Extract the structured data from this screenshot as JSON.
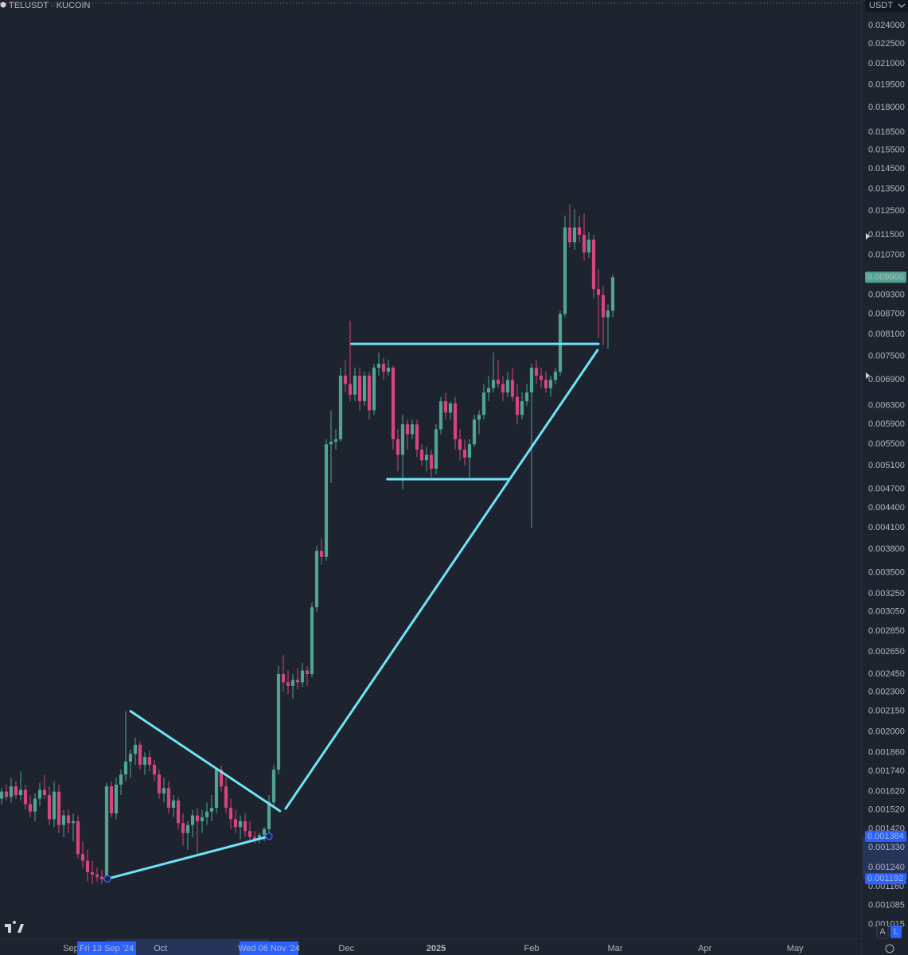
{
  "chart_data": {
    "type": "candlestick",
    "title": "TELUSDT · KUCOIN",
    "currency": "USDT",
    "log_scale": true,
    "grid": false,
    "up_color": "#4fa58f",
    "down_color": "#d6457c",
    "drawing_color": "#6fe3f5",
    "candles": [
      [
        0.00158,
        0.00164,
        0.00155,
        0.00162
      ],
      [
        0.00162,
        0.00166,
        0.00157,
        0.00159
      ],
      [
        0.00159,
        0.0017,
        0.00156,
        0.00165
      ],
      [
        0.00165,
        0.00168,
        0.00158,
        0.0016
      ],
      [
        0.0016,
        0.00174,
        0.00157,
        0.00163
      ],
      [
        0.00163,
        0.00166,
        0.00152,
        0.00155
      ],
      [
        0.00155,
        0.0016,
        0.00148,
        0.00151
      ],
      [
        0.00151,
        0.00161,
        0.00146,
        0.00158
      ],
      [
        0.00158,
        0.00167,
        0.00154,
        0.00163
      ],
      [
        0.00163,
        0.00172,
        0.00158,
        0.0016
      ],
      [
        0.0016,
        0.00165,
        0.00144,
        0.00147
      ],
      [
        0.00147,
        0.00168,
        0.00143,
        0.00162
      ],
      [
        0.00162,
        0.00166,
        0.0014,
        0.00144
      ],
      [
        0.00144,
        0.00152,
        0.00138,
        0.00149
      ],
      [
        0.00149,
        0.00152,
        0.0014,
        0.00145
      ],
      [
        0.00145,
        0.0015,
        0.00136,
        0.00146
      ],
      [
        0.00146,
        0.00149,
        0.00128,
        0.0013
      ],
      [
        0.0013,
        0.00136,
        0.00124,
        0.00127
      ],
      [
        0.00127,
        0.00132,
        0.00118,
        0.00122
      ],
      [
        0.00122,
        0.00127,
        0.00117,
        0.00121
      ],
      [
        0.00121,
        0.00124,
        0.00118,
        0.0012
      ],
      [
        0.0012,
        0.00123,
        0.00117,
        0.00119
      ],
      [
        0.00119,
        0.00167,
        0.00118,
        0.00165
      ],
      [
        0.00165,
        0.00168,
        0.00148,
        0.0015
      ],
      [
        0.0015,
        0.0017,
        0.00147,
        0.00166
      ],
      [
        0.00166,
        0.00175,
        0.0016,
        0.00172
      ],
      [
        0.00172,
        0.00215,
        0.00168,
        0.0018
      ],
      [
        0.0018,
        0.00188,
        0.0017,
        0.00185
      ],
      [
        0.00185,
        0.00196,
        0.00178,
        0.00191
      ],
      [
        0.00191,
        0.00193,
        0.00175,
        0.00178
      ],
      [
        0.00178,
        0.00186,
        0.00172,
        0.00183
      ],
      [
        0.00183,
        0.00187,
        0.00174,
        0.00178
      ],
      [
        0.00178,
        0.00181,
        0.00168,
        0.00172
      ],
      [
        0.00172,
        0.00175,
        0.00158,
        0.00161
      ],
      [
        0.00161,
        0.0017,
        0.00156,
        0.00164
      ],
      [
        0.00164,
        0.00168,
        0.0015,
        0.00153
      ],
      [
        0.00153,
        0.0016,
        0.00148,
        0.00157
      ],
      [
        0.00157,
        0.00159,
        0.00142,
        0.00145
      ],
      [
        0.00145,
        0.0015,
        0.00134,
        0.0014
      ],
      [
        0.0014,
        0.00146,
        0.00132,
        0.00144
      ],
      [
        0.00144,
        0.00152,
        0.00138,
        0.00149
      ],
      [
        0.00149,
        0.00153,
        0.0013,
        0.00146
      ],
      [
        0.00146,
        0.00152,
        0.0014,
        0.00148
      ],
      [
        0.00148,
        0.00156,
        0.00144,
        0.00151
      ],
      [
        0.00151,
        0.0016,
        0.00146,
        0.00153
      ],
      [
        0.00153,
        0.00176,
        0.0015,
        0.00175
      ],
      [
        0.00175,
        0.00178,
        0.00162,
        0.00165
      ],
      [
        0.00165,
        0.0017,
        0.0015,
        0.00153
      ],
      [
        0.00153,
        0.00158,
        0.00142,
        0.00147
      ],
      [
        0.00147,
        0.00152,
        0.0014,
        0.00143
      ],
      [
        0.00143,
        0.00149,
        0.00137,
        0.00146
      ],
      [
        0.00146,
        0.0015,
        0.00138,
        0.00141
      ],
      [
        0.00141,
        0.00146,
        0.00136,
        0.00138
      ],
      [
        0.00138,
        0.00141,
        0.00135,
        0.00137
      ],
      [
        0.00137,
        0.0014,
        0.00135,
        0.00139
      ],
      [
        0.00139,
        0.00143,
        0.00136,
        0.00142
      ],
      [
        0.00142,
        0.0016,
        0.00138,
        0.00156
      ],
      [
        0.00156,
        0.00178,
        0.00154,
        0.00175
      ],
      [
        0.00175,
        0.00252,
        0.00172,
        0.00245
      ],
      [
        0.00245,
        0.00262,
        0.0023,
        0.00238
      ],
      [
        0.00238,
        0.00248,
        0.00228,
        0.00235
      ],
      [
        0.00235,
        0.00245,
        0.00225,
        0.0024
      ],
      [
        0.0024,
        0.0025,
        0.00232,
        0.00238
      ],
      [
        0.00238,
        0.00255,
        0.00234,
        0.00248
      ],
      [
        0.00248,
        0.00252,
        0.00235,
        0.00245
      ],
      [
        0.00245,
        0.00315,
        0.00242,
        0.0031
      ],
      [
        0.0031,
        0.00385,
        0.00305,
        0.00378
      ],
      [
        0.00378,
        0.00395,
        0.0036,
        0.0037
      ],
      [
        0.0037,
        0.0056,
        0.00365,
        0.0055
      ],
      [
        0.0055,
        0.0062,
        0.0048,
        0.00555
      ],
      [
        0.00555,
        0.0058,
        0.0054,
        0.0056
      ],
      [
        0.0056,
        0.0072,
        0.00555,
        0.007
      ],
      [
        0.007,
        0.0074,
        0.0066,
        0.0068
      ],
      [
        0.0068,
        0.0085,
        0.0064,
        0.00655
      ],
      [
        0.00655,
        0.0072,
        0.0064,
        0.007
      ],
      [
        0.007,
        0.0072,
        0.0062,
        0.0064
      ],
      [
        0.0064,
        0.0071,
        0.0063,
        0.007
      ],
      [
        0.007,
        0.0071,
        0.006,
        0.0062
      ],
      [
        0.0062,
        0.0073,
        0.0061,
        0.0072
      ],
      [
        0.0072,
        0.0076,
        0.007,
        0.0073
      ],
      [
        0.0073,
        0.00745,
        0.0069,
        0.0071
      ],
      [
        0.0071,
        0.0074,
        0.007,
        0.0072
      ],
      [
        0.0072,
        0.00725,
        0.0054,
        0.0056
      ],
      [
        0.0056,
        0.0058,
        0.005,
        0.0053
      ],
      [
        0.0053,
        0.0061,
        0.0047,
        0.0059
      ],
      [
        0.0059,
        0.006,
        0.0054,
        0.0057
      ],
      [
        0.0057,
        0.006,
        0.0056,
        0.0059
      ],
      [
        0.0059,
        0.006,
        0.00525,
        0.0054
      ],
      [
        0.0054,
        0.0055,
        0.0051,
        0.0052
      ],
      [
        0.0052,
        0.00545,
        0.005,
        0.0053
      ],
      [
        0.0053,
        0.0054,
        0.0049,
        0.00505
      ],
      [
        0.00505,
        0.0059,
        0.00495,
        0.0058
      ],
      [
        0.0058,
        0.0065,
        0.0057,
        0.0064
      ],
      [
        0.0064,
        0.0066,
        0.006,
        0.00615
      ],
      [
        0.00615,
        0.0064,
        0.006,
        0.00635
      ],
      [
        0.00635,
        0.0065,
        0.0054,
        0.0056
      ],
      [
        0.0056,
        0.0058,
        0.0052,
        0.0054
      ],
      [
        0.0054,
        0.0056,
        0.0051,
        0.00525
      ],
      [
        0.00525,
        0.0056,
        0.0049,
        0.0055
      ],
      [
        0.0055,
        0.0061,
        0.00545,
        0.006
      ],
      [
        0.006,
        0.0062,
        0.0057,
        0.0061
      ],
      [
        0.0061,
        0.0068,
        0.006,
        0.0066
      ],
      [
        0.0066,
        0.007,
        0.0064,
        0.0067
      ],
      [
        0.0067,
        0.0076,
        0.0066,
        0.0069
      ],
      [
        0.0069,
        0.0074,
        0.0067,
        0.0068
      ],
      [
        0.0068,
        0.007,
        0.0064,
        0.0066
      ],
      [
        0.0066,
        0.0071,
        0.0065,
        0.0069
      ],
      [
        0.0069,
        0.0072,
        0.0064,
        0.0065
      ],
      [
        0.0065,
        0.0068,
        0.0059,
        0.0061
      ],
      [
        0.0061,
        0.0066,
        0.006,
        0.0064
      ],
      [
        0.0064,
        0.0068,
        0.0063,
        0.0066
      ],
      [
        0.0066,
        0.0073,
        0.0041,
        0.0072
      ],
      [
        0.0072,
        0.0074,
        0.0068,
        0.007
      ],
      [
        0.007,
        0.0072,
        0.0067,
        0.0069
      ],
      [
        0.0069,
        0.0071,
        0.0066,
        0.0067
      ],
      [
        0.0067,
        0.007,
        0.0065,
        0.0069
      ],
      [
        0.0069,
        0.0072,
        0.0068,
        0.0071
      ],
      [
        0.0071,
        0.0088,
        0.007,
        0.0087
      ],
      [
        0.0087,
        0.0123,
        0.0086,
        0.0118
      ],
      [
        0.0118,
        0.0128,
        0.011,
        0.0112
      ],
      [
        0.0112,
        0.0126,
        0.0109,
        0.0118
      ],
      [
        0.0118,
        0.0123,
        0.0112,
        0.0115
      ],
      [
        0.0115,
        0.0124,
        0.0105,
        0.0108
      ],
      [
        0.0108,
        0.0116,
        0.0106,
        0.0113
      ],
      [
        0.0113,
        0.0115,
        0.0092,
        0.0095
      ],
      [
        0.0095,
        0.0102,
        0.008,
        0.0093
      ],
      [
        0.0093,
        0.0096,
        0.0078,
        0.0086
      ],
      [
        0.0086,
        0.009,
        0.0077,
        0.0088
      ],
      [
        0.0088,
        0.01,
        0.0086,
        0.0099
      ]
    ],
    "xlim": [
      -0.333,
      180.17
    ],
    "xticks": [
      {
        "value": 14.5,
        "label": "Sep"
      },
      {
        "value": 33.3,
        "label": "Oct"
      },
      {
        "value": 72.2,
        "label": "Dec"
      },
      {
        "value": 91,
        "label": "2025"
      },
      {
        "value": 111,
        "label": "Feb"
      },
      {
        "value": 128.5,
        "label": "Mar"
      },
      {
        "value": 147.3,
        "label": "Apr"
      },
      {
        "value": 166.2,
        "label": "May"
      }
    ],
    "x_markers": [
      {
        "value": 22,
        "label": "Fri 13 Sep '24"
      },
      {
        "value": 56,
        "label": "Wed 06 Nov '24"
      }
    ],
    "ylim": [
      0.000964,
      0.02627
    ],
    "yticks": [
      {
        "value": 0.024,
        "label": "0.024000"
      },
      {
        "value": 0.0225,
        "label": "0.022500"
      },
      {
        "value": 0.021,
        "label": "0.021000"
      },
      {
        "value": 0.0195,
        "label": "0.019500"
      },
      {
        "value": 0.018,
        "label": "0.018000"
      },
      {
        "value": 0.0165,
        "label": "0.016500"
      },
      {
        "value": 0.0155,
        "label": "0.015500"
      },
      {
        "value": 0.0145,
        "label": "0.014500"
      },
      {
        "value": 0.0135,
        "label": "0.013500"
      },
      {
        "value": 0.0125,
        "label": "0.012500"
      },
      {
        "value": 0.0115,
        "label": "0.011500"
      },
      {
        "value": 0.0107,
        "label": "0.010700"
      },
      {
        "value": 0.0093,
        "label": "0.009300"
      },
      {
        "value": 0.0087,
        "label": "0.008700"
      },
      {
        "value": 0.0081,
        "label": "0.008100"
      },
      {
        "value": 0.0075,
        "label": "0.007500"
      },
      {
        "value": 0.0069,
        "label": "0.006900"
      },
      {
        "value": 0.0063,
        "label": "0.006300"
      },
      {
        "value": 0.0059,
        "label": "0.005900"
      },
      {
        "value": 0.0055,
        "label": "0.005500"
      },
      {
        "value": 0.0051,
        "label": "0.005100"
      },
      {
        "value": 0.0047,
        "label": "0.004700"
      },
      {
        "value": 0.0044,
        "label": "0.004400"
      },
      {
        "value": 0.0041,
        "label": "0.004100"
      },
      {
        "value": 0.0038,
        "label": "0.003800"
      },
      {
        "value": 0.0035,
        "label": "0.003500"
      },
      {
        "value": 0.00325,
        "label": "0.003250"
      },
      {
        "value": 0.00305,
        "label": "0.003050"
      },
      {
        "value": 0.00285,
        "label": "0.002850"
      },
      {
        "value": 0.00265,
        "label": "0.002650"
      },
      {
        "value": 0.00245,
        "label": "0.002450"
      },
      {
        "value": 0.0023,
        "label": "0.002300"
      },
      {
        "value": 0.00215,
        "label": "0.002150"
      },
      {
        "value": 0.002,
        "label": "0.002000"
      },
      {
        "value": 0.00186,
        "label": "0.001860"
      },
      {
        "value": 0.00174,
        "label": "0.001740"
      },
      {
        "value": 0.00162,
        "label": "0.001620"
      },
      {
        "value": 0.00152,
        "label": "0.001520"
      },
      {
        "value": 0.00142,
        "label": "0.001420"
      },
      {
        "value": 0.00133,
        "label": "0.001330"
      },
      {
        "value": 0.00124,
        "label": "0.001240"
      },
      {
        "value": 0.00116,
        "label": "0.001160"
      },
      {
        "value": 0.001085,
        "label": "0.001085"
      },
      {
        "value": 0.001015,
        "label": "0.001015"
      }
    ],
    "price_markers": [
      {
        "value": 0.0099,
        "label": "0.009900",
        "color": "#4fa58f"
      },
      {
        "value": 0.001384,
        "label": "0.001384",
        "color": "#2962ff"
      },
      {
        "value": 0.001192,
        "label": "0.001192",
        "color": "#2962ff"
      }
    ],
    "drawings": [
      {
        "points": [
          [
            27,
            0.00215
          ],
          [
            58.3,
            0.001513
          ]
        ]
      },
      {
        "points": [
          [
            22.17,
            0.001192
          ],
          [
            56,
            0.001384
          ]
        ]
      },
      {
        "points": [
          [
            59.5,
            0.001526
          ],
          [
            124.8,
            0.00766
          ]
        ]
      },
      {
        "points": [
          [
            73.3,
            0.00783
          ],
          [
            125,
            0.00783
          ]
        ]
      },
      {
        "points": [
          [
            80.8,
            0.004864
          ],
          [
            106.3,
            0.004864
          ]
        ]
      }
    ],
    "buttons": [
      "A",
      "L"
    ]
  }
}
